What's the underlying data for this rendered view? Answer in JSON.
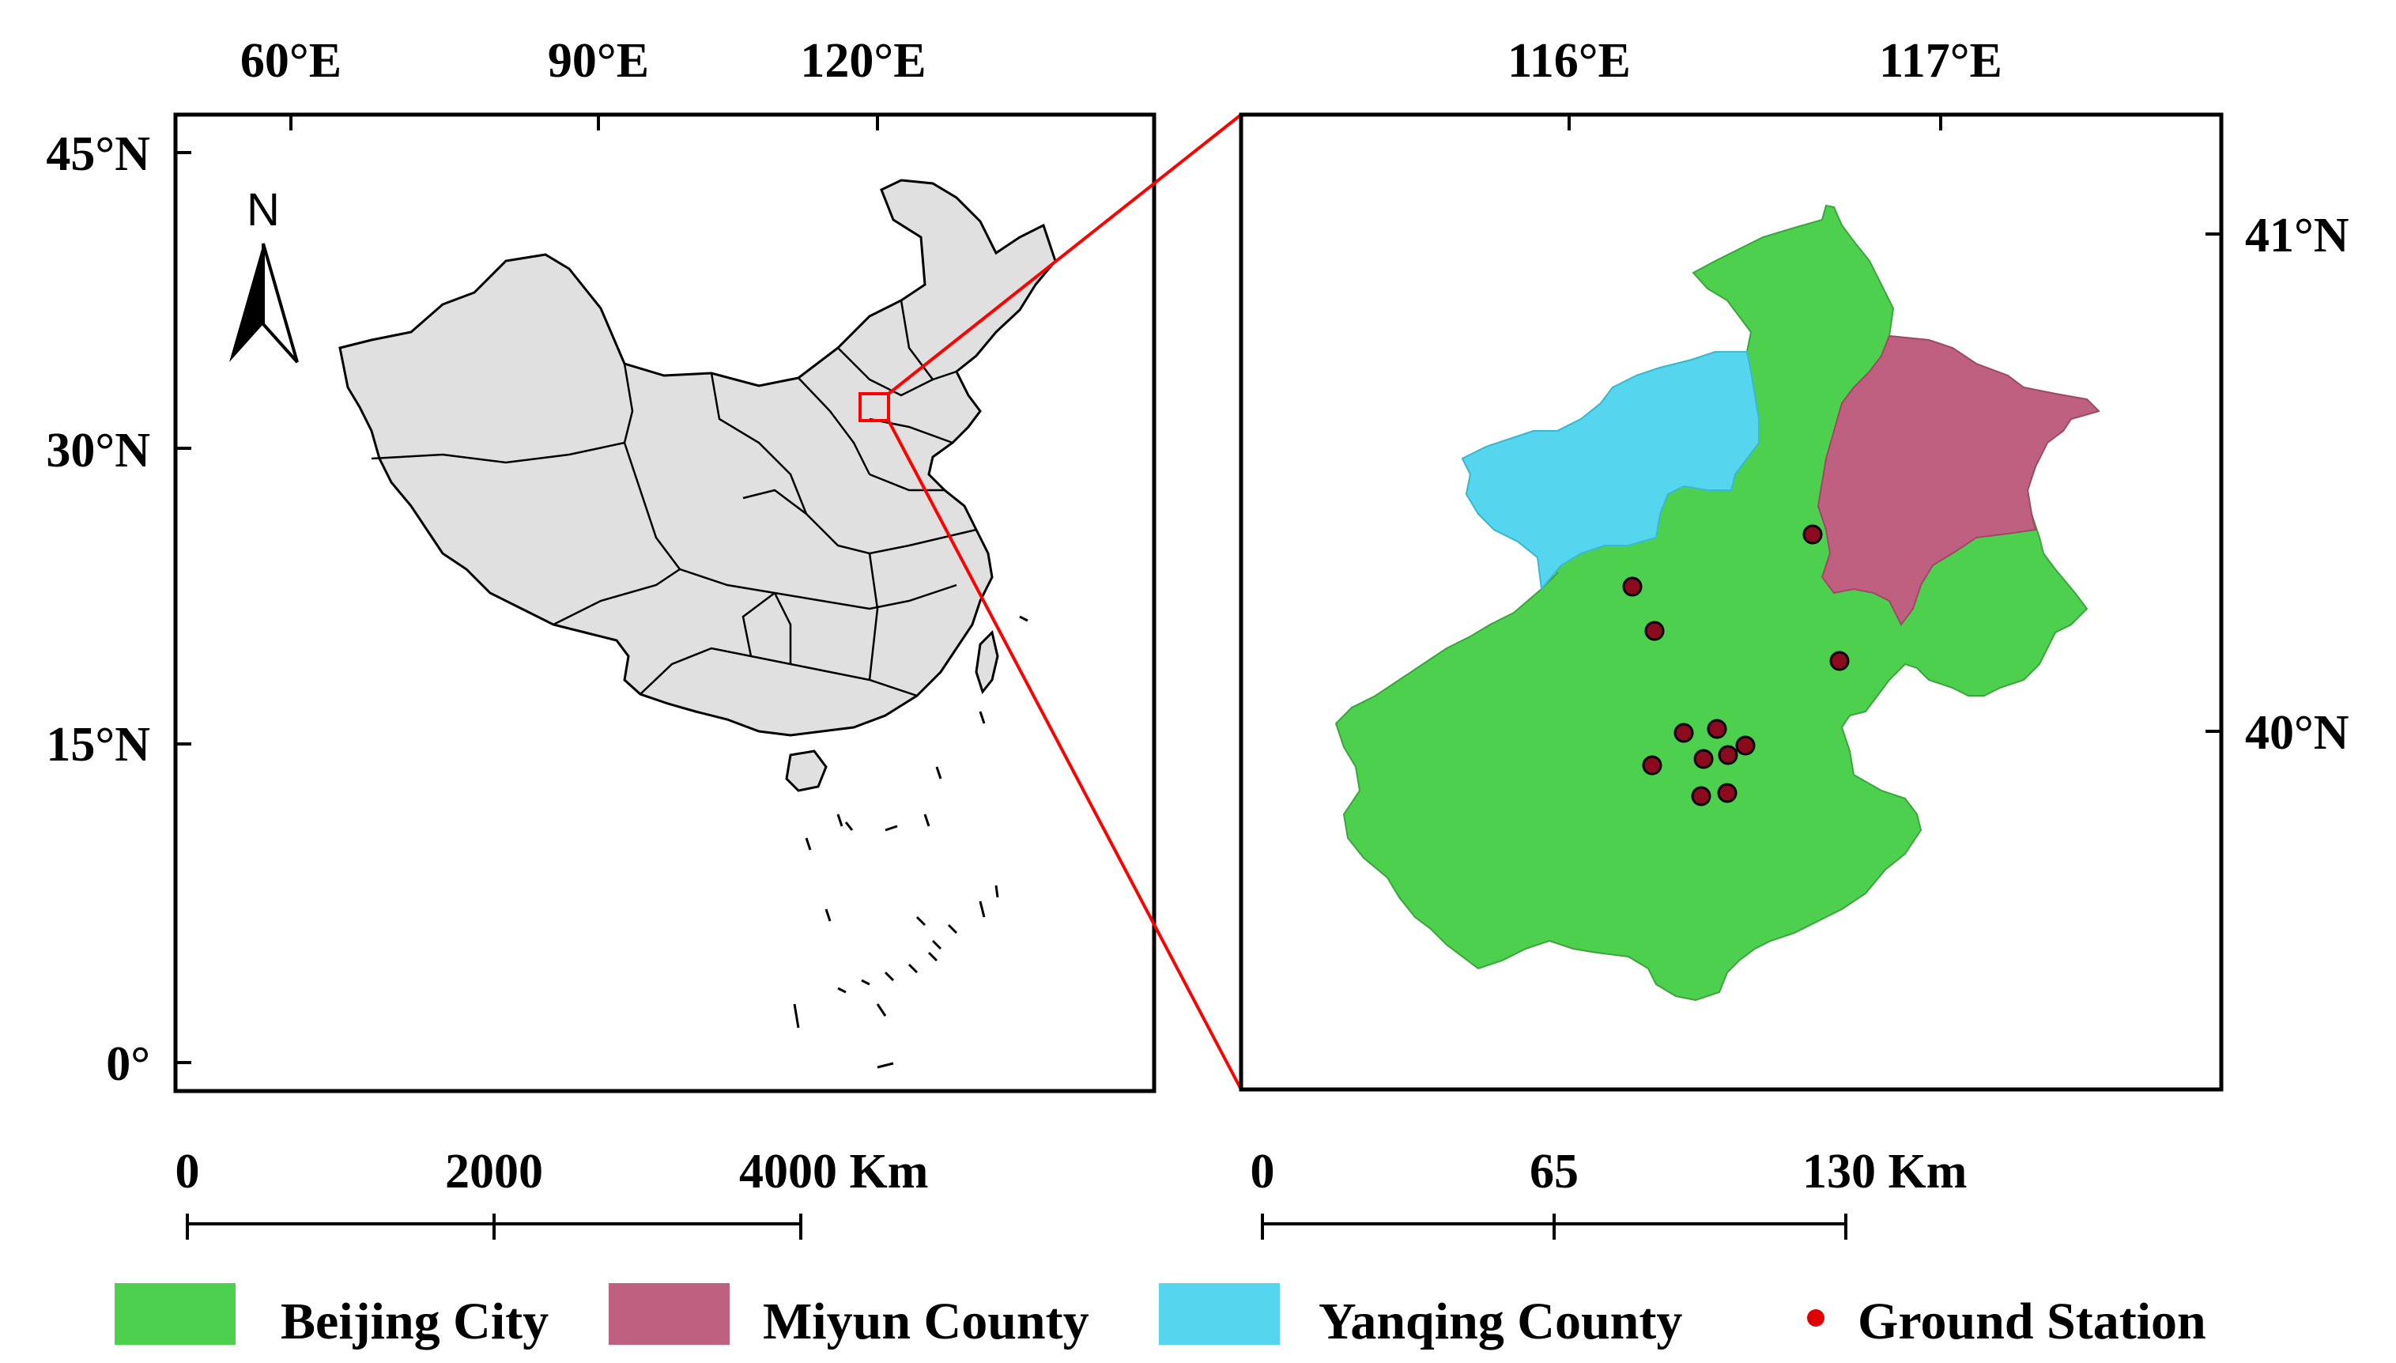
{
  "left_map": {
    "top_ticks": [
      "60°E",
      "90°E",
      "120°E"
    ],
    "left_ticks": [
      "45°N",
      "30°N",
      "15°N",
      "0°"
    ],
    "north_label": "N",
    "scale_bar": [
      "0",
      "2000",
      "4000 Km"
    ]
  },
  "right_map": {
    "top_ticks": [
      "116°E",
      "117°E"
    ],
    "right_ticks": [
      "41°N",
      "40°N"
    ],
    "scale_bar": [
      "0",
      "65",
      "130 Km"
    ]
  },
  "legend": [
    {
      "label": "Beijing City",
      "color": "#4dd04d"
    },
    {
      "label": "Miyun County",
      "color": "#c06080"
    },
    {
      "label": "Yanqing County",
      "color": "#55d6ee"
    },
    {
      "label": "Ground Station",
      "color": "#e00000"
    }
  ],
  "colors": {
    "china_fill": "#e0e0e0",
    "frame_line": "#000000",
    "inset_line": "#ff0000",
    "station_fill": "#8b0a1e"
  }
}
